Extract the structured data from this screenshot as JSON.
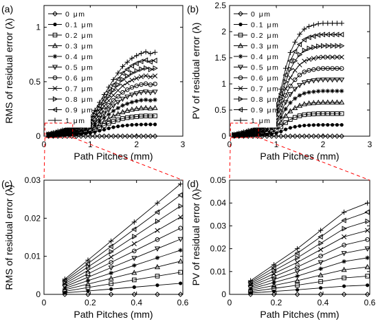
{
  "chart_data": [
    {
      "panel_label": "(a)",
      "type": "line",
      "xlabel": "Path Pitches (mm)",
      "ylabel": "RMS of residual error (λ)",
      "xlim": [
        0,
        3
      ],
      "ylim": [
        0,
        1.2
      ],
      "xticks": [
        "0",
        "1",
        "2",
        "3"
      ],
      "yticks": [
        "0",
        "0.5",
        "1"
      ],
      "legend_position": "top-left",
      "x": [
        0.1,
        0.2,
        0.3,
        0.4,
        0.5,
        0.6,
        0.7,
        0.8,
        0.9,
        1.0,
        1.1,
        1.2,
        1.3,
        1.4,
        1.5,
        1.6,
        1.7,
        1.8,
        1.9,
        2.0,
        2.1,
        2.2,
        2.3,
        2.4
      ],
      "series": [
        {
          "name": "0 μm",
          "marker": "diamond",
          "values": [
            0,
            0,
            0,
            0,
            0,
            0,
            0,
            0,
            0,
            0,
            0,
            0,
            0,
            0,
            0,
            0,
            0,
            0,
            0,
            0,
            0,
            0,
            0,
            0
          ]
        },
        {
          "name": "0.1 μm",
          "marker": "dot",
          "values": [
            0.003,
            0.005,
            0.008,
            0.011,
            0.013,
            0.016,
            0.018,
            0.02,
            0.024,
            0.03,
            0.038,
            0.05,
            0.06,
            0.072,
            0.082,
            0.09,
            0.096,
            0.1,
            0.104,
            0.106,
            0.107,
            0.108,
            0.108,
            0.108
          ]
        },
        {
          "name": "0.2 μm",
          "marker": "square",
          "values": [
            0.005,
            0.008,
            0.012,
            0.016,
            0.02,
            0.024,
            0.028,
            0.032,
            0.038,
            0.048,
            0.063,
            0.08,
            0.098,
            0.118,
            0.135,
            0.15,
            0.162,
            0.17,
            0.176,
            0.18,
            0.184,
            0.186,
            0.185,
            0.186
          ]
        },
        {
          "name": "0.3 μm",
          "marker": "triangle-up",
          "values": [
            0.007,
            0.011,
            0.016,
            0.021,
            0.026,
            0.031,
            0.036,
            0.042,
            0.05,
            0.064,
            0.085,
            0.11,
            0.135,
            0.16,
            0.185,
            0.205,
            0.222,
            0.235,
            0.245,
            0.252,
            0.258,
            0.26,
            0.256,
            0.26
          ]
        },
        {
          "name": "0.4 μm",
          "marker": "star",
          "values": [
            0.009,
            0.014,
            0.02,
            0.026,
            0.032,
            0.038,
            0.045,
            0.052,
            0.063,
            0.08,
            0.106,
            0.138,
            0.17,
            0.2,
            0.232,
            0.258,
            0.282,
            0.298,
            0.312,
            0.322,
            0.33,
            0.334,
            0.328,
            0.334
          ]
        },
        {
          "name": "0.5 μm",
          "marker": "triangle-down",
          "values": [
            0.011,
            0.017,
            0.024,
            0.031,
            0.038,
            0.046,
            0.054,
            0.062,
            0.076,
            0.097,
            0.128,
            0.166,
            0.205,
            0.242,
            0.28,
            0.312,
            0.342,
            0.362,
            0.38,
            0.392,
            0.402,
            0.408,
            0.4,
            0.407
          ]
        },
        {
          "name": "0.6 μm",
          "marker": "circle",
          "values": [
            0.013,
            0.02,
            0.028,
            0.036,
            0.045,
            0.054,
            0.063,
            0.073,
            0.089,
            0.114,
            0.15,
            0.195,
            0.24,
            0.284,
            0.328,
            0.366,
            0.402,
            0.427,
            0.448,
            0.462,
            0.474,
            0.482,
            0.472,
            0.48
          ]
        },
        {
          "name": "0.7 μm",
          "marker": "x",
          "values": [
            0.015,
            0.023,
            0.032,
            0.042,
            0.052,
            0.062,
            0.073,
            0.084,
            0.102,
            0.13,
            0.172,
            0.224,
            0.276,
            0.326,
            0.376,
            0.42,
            0.462,
            0.49,
            0.515,
            0.532,
            0.546,
            0.555,
            0.544,
            0.553
          ]
        },
        {
          "name": "0.8 μm",
          "marker": "triangle-right",
          "values": [
            0.017,
            0.026,
            0.036,
            0.047,
            0.058,
            0.07,
            0.082,
            0.095,
            0.115,
            0.147,
            0.194,
            0.252,
            0.31,
            0.366,
            0.422,
            0.472,
            0.52,
            0.552,
            0.58,
            0.6,
            0.616,
            0.626,
            0.613,
            0.624
          ]
        },
        {
          "name": "0.9 μm",
          "marker": "triangle-left",
          "values": [
            0.019,
            0.029,
            0.04,
            0.052,
            0.065,
            0.078,
            0.091,
            0.105,
            0.128,
            0.163,
            0.216,
            0.28,
            0.345,
            0.408,
            0.47,
            0.525,
            0.578,
            0.614,
            0.646,
            0.668,
            0.686,
            0.698,
            0.683,
            0.695
          ]
        },
        {
          "name": "1 μm",
          "marker": "plus",
          "values": [
            0.021,
            0.032,
            0.045,
            0.058,
            0.072,
            0.086,
            0.1,
            0.115,
            0.14,
            0.18,
            0.238,
            0.31,
            0.382,
            0.45,
            0.52,
            0.58,
            0.64,
            0.68,
            0.715,
            0.74,
            0.76,
            0.775,
            0.758,
            0.77
          ]
        }
      ]
    },
    {
      "panel_label": "(b)",
      "type": "line",
      "xlabel": "Path Pitches (mm)",
      "ylabel": "PV of residual error (λ)",
      "xlim": [
        0,
        3
      ],
      "ylim": [
        0,
        2.5
      ],
      "xticks": [
        "0",
        "1",
        "2",
        "3"
      ],
      "yticks": [
        "0",
        "0.5",
        "1",
        "1.5",
        "2",
        "2.5"
      ],
      "legend_position": "top-left",
      "x": [
        0.1,
        0.2,
        0.3,
        0.4,
        0.5,
        0.6,
        0.7,
        0.8,
        0.9,
        1.0,
        1.1,
        1.2,
        1.3,
        1.4,
        1.5,
        1.6,
        1.7,
        1.8,
        1.9,
        2.0,
        2.1,
        2.2,
        2.3,
        2.4
      ],
      "series": [
        {
          "name": "0 μm",
          "marker": "diamond",
          "values": [
            0,
            0,
            0,
            0,
            0,
            0,
            0,
            0,
            0,
            0,
            0,
            0,
            0,
            0,
            0,
            0,
            0,
            0,
            0,
            0,
            0,
            0,
            0,
            0
          ]
        },
        {
          "name": "0.1 μm",
          "marker": "dot",
          "values": [
            0.004,
            0.007,
            0.01,
            0.014,
            0.017,
            0.021,
            0.025,
            0.03,
            0.04,
            0.06,
            0.09,
            0.13,
            0.16,
            0.18,
            0.195,
            0.205,
            0.21,
            0.213,
            0.215,
            0.216,
            0.216,
            0.216,
            0.216,
            0.216
          ]
        },
        {
          "name": "0.2 μm",
          "marker": "square",
          "values": [
            0.008,
            0.013,
            0.019,
            0.026,
            0.033,
            0.04,
            0.048,
            0.06,
            0.08,
            0.12,
            0.18,
            0.26,
            0.32,
            0.36,
            0.39,
            0.41,
            0.42,
            0.425,
            0.43,
            0.432,
            0.432,
            0.432,
            0.432,
            0.432
          ]
        },
        {
          "name": "0.3 μm",
          "marker": "triangle-up",
          "values": [
            0.011,
            0.018,
            0.026,
            0.036,
            0.046,
            0.056,
            0.07,
            0.09,
            0.12,
            0.18,
            0.27,
            0.39,
            0.48,
            0.54,
            0.585,
            0.615,
            0.63,
            0.638,
            0.645,
            0.648,
            0.648,
            0.648,
            0.648,
            0.648
          ]
        },
        {
          "name": "0.4 μm",
          "marker": "star",
          "values": [
            0.015,
            0.024,
            0.034,
            0.046,
            0.058,
            0.072,
            0.09,
            0.12,
            0.16,
            0.24,
            0.36,
            0.52,
            0.64,
            0.72,
            0.78,
            0.82,
            0.84,
            0.85,
            0.86,
            0.864,
            0.864,
            0.864,
            0.864,
            0.864
          ]
        },
        {
          "name": "0.5 μm",
          "marker": "triangle-down",
          "values": [
            0.018,
            0.029,
            0.042,
            0.056,
            0.071,
            0.088,
            0.11,
            0.15,
            0.2,
            0.3,
            0.45,
            0.65,
            0.8,
            0.9,
            0.975,
            1.025,
            1.05,
            1.063,
            1.075,
            1.08,
            1.08,
            1.08,
            1.08,
            1.08
          ]
        },
        {
          "name": "0.6 μm",
          "marker": "circle",
          "values": [
            0.021,
            0.034,
            0.049,
            0.066,
            0.084,
            0.104,
            0.13,
            0.18,
            0.24,
            0.36,
            0.54,
            0.78,
            0.96,
            1.08,
            1.17,
            1.23,
            1.26,
            1.275,
            1.29,
            1.296,
            1.296,
            1.296,
            1.296,
            1.296
          ]
        },
        {
          "name": "0.7 μm",
          "marker": "x",
          "values": [
            0.024,
            0.039,
            0.056,
            0.076,
            0.097,
            0.12,
            0.15,
            0.21,
            0.28,
            0.42,
            0.63,
            0.91,
            1.12,
            1.26,
            1.365,
            1.435,
            1.47,
            1.488,
            1.505,
            1.512,
            1.512,
            1.512,
            1.512,
            1.512
          ]
        },
        {
          "name": "0.8 μm",
          "marker": "triangle-right",
          "values": [
            0.028,
            0.044,
            0.064,
            0.086,
            0.11,
            0.136,
            0.17,
            0.24,
            0.32,
            0.48,
            0.72,
            1.04,
            1.28,
            1.44,
            1.56,
            1.64,
            1.68,
            1.7,
            1.72,
            1.728,
            1.728,
            1.728,
            1.728,
            1.728
          ]
        },
        {
          "name": "0.9 μm",
          "marker": "triangle-left",
          "values": [
            0.031,
            0.05,
            0.072,
            0.097,
            0.123,
            0.152,
            0.19,
            0.27,
            0.36,
            0.54,
            0.81,
            1.17,
            1.44,
            1.62,
            1.755,
            1.845,
            1.89,
            1.913,
            1.935,
            1.944,
            1.944,
            1.944,
            1.944,
            1.944
          ]
        },
        {
          "name": "1 μm",
          "marker": "plus",
          "values": [
            0.035,
            0.055,
            0.08,
            0.107,
            0.137,
            0.169,
            0.21,
            0.3,
            0.4,
            0.6,
            0.9,
            1.3,
            1.6,
            1.8,
            1.95,
            2.05,
            2.1,
            2.125,
            2.15,
            2.16,
            2.16,
            2.16,
            2.16,
            2.16
          ]
        }
      ]
    },
    {
      "panel_label": "(c)",
      "type": "line",
      "xlabel": "Path Pitches (mm)",
      "ylabel": "RMS of residual error (λ)",
      "xlim": [
        0,
        0.6
      ],
      "ylim": [
        0,
        0.03
      ],
      "xticks": [
        "0",
        "0.2",
        "0.4",
        "0.6"
      ],
      "yticks": [
        "0",
        "0.01",
        "0.02",
        "0.03"
      ],
      "x": [
        0.09,
        0.19,
        0.29,
        0.39,
        0.49,
        0.59
      ],
      "series": [
        {
          "name": "0 μm",
          "marker": "diamond",
          "values": [
            0,
            0,
            0,
            0,
            0,
            0
          ]
        },
        {
          "name": "0.1 μm",
          "marker": "dot",
          "values": [
            0.0004,
            0.0009,
            0.0014,
            0.0019,
            0.0024,
            0.0029
          ]
        },
        {
          "name": "0.2 μm",
          "marker": "square",
          "values": [
            0.0008,
            0.0018,
            0.0028,
            0.0038,
            0.0048,
            0.0058
          ]
        },
        {
          "name": "0.3 μm",
          "marker": "triangle-up",
          "values": [
            0.0012,
            0.0027,
            0.0042,
            0.0057,
            0.0072,
            0.0087
          ]
        },
        {
          "name": "0.4 μm",
          "marker": "star",
          "values": [
            0.0016,
            0.0036,
            0.0056,
            0.0076,
            0.0096,
            0.0116
          ]
        },
        {
          "name": "0.5 μm",
          "marker": "triangle-down",
          "values": [
            0.002,
            0.0045,
            0.007,
            0.0095,
            0.012,
            0.0145
          ]
        },
        {
          "name": "0.6 μm",
          "marker": "circle",
          "values": [
            0.0024,
            0.0054,
            0.0084,
            0.0114,
            0.0144,
            0.0174
          ]
        },
        {
          "name": "0.7 μm",
          "marker": "x",
          "values": [
            0.0028,
            0.0063,
            0.0098,
            0.0133,
            0.0168,
            0.0203
          ]
        },
        {
          "name": "0.8 μm",
          "marker": "triangle-right",
          "values": [
            0.0032,
            0.0072,
            0.0112,
            0.0152,
            0.0192,
            0.0232
          ]
        },
        {
          "name": "0.9 μm",
          "marker": "triangle-left",
          "values": [
            0.0036,
            0.0081,
            0.0126,
            0.0171,
            0.0216,
            0.0261
          ]
        },
        {
          "name": "1 μm",
          "marker": "plus",
          "values": [
            0.004,
            0.009,
            0.014,
            0.019,
            0.024,
            0.029
          ]
        }
      ]
    },
    {
      "panel_label": "(d)",
      "type": "line",
      "xlabel": "Path Pitches (mm)",
      "ylabel": "PV of residual error (λ)",
      "xlim": [
        0,
        0.6
      ],
      "ylim": [
        0,
        0.05
      ],
      "xticks": [
        "0",
        "0.2",
        "0.4",
        "0.6"
      ],
      "yticks": [
        "0",
        "0.01",
        "0.02",
        "0.03",
        "0.04",
        "0.05"
      ],
      "x": [
        0.09,
        0.19,
        0.29,
        0.39,
        0.49,
        0.59
      ],
      "series": [
        {
          "name": "0 μm",
          "marker": "diamond",
          "values": [
            0,
            0,
            0,
            0,
            0,
            0
          ]
        },
        {
          "name": "0.1 μm",
          "marker": "dot",
          "values": [
            0.0006,
            0.0013,
            0.002,
            0.0028,
            0.0036,
            0.004
          ]
        },
        {
          "name": "0.2 μm",
          "marker": "square",
          "values": [
            0.0012,
            0.0026,
            0.004,
            0.0056,
            0.0072,
            0.008
          ]
        },
        {
          "name": "0.3 μm",
          "marker": "triangle-up",
          "values": [
            0.0018,
            0.0039,
            0.006,
            0.0084,
            0.0108,
            0.012
          ]
        },
        {
          "name": "0.4 μm",
          "marker": "star",
          "values": [
            0.0024,
            0.0052,
            0.008,
            0.0112,
            0.0144,
            0.016
          ]
        },
        {
          "name": "0.5 μm",
          "marker": "triangle-down",
          "values": [
            0.003,
            0.0065,
            0.01,
            0.014,
            0.018,
            0.02
          ]
        },
        {
          "name": "0.6 μm",
          "marker": "circle",
          "values": [
            0.0036,
            0.0078,
            0.012,
            0.0168,
            0.0216,
            0.024
          ]
        },
        {
          "name": "0.7 μm",
          "marker": "x",
          "values": [
            0.0042,
            0.0091,
            0.014,
            0.0196,
            0.0252,
            0.028
          ]
        },
        {
          "name": "0.8 μm",
          "marker": "triangle-right",
          "values": [
            0.0048,
            0.0104,
            0.016,
            0.0224,
            0.0288,
            0.032
          ]
        },
        {
          "name": "0.9 μm",
          "marker": "triangle-left",
          "values": [
            0.0054,
            0.0117,
            0.018,
            0.0252,
            0.0324,
            0.036
          ]
        },
        {
          "name": "1 μm",
          "marker": "plus",
          "values": [
            0.006,
            0.013,
            0.02,
            0.028,
            0.036,
            0.04
          ]
        }
      ]
    }
  ],
  "zoom_line_color": "#ff0000"
}
